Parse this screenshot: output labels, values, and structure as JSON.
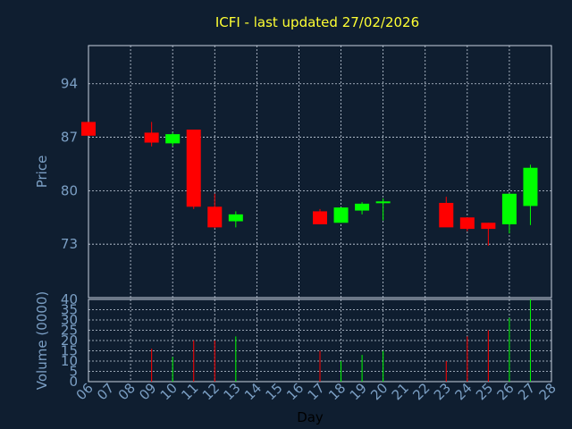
{
  "chart_data": {
    "type": "candlestick",
    "title": "ICFI - last updated 27/02/2026",
    "xlabel": "Day",
    "x_ticks": [
      "06",
      "07",
      "08",
      "09",
      "10",
      "11",
      "12",
      "13",
      "14",
      "15",
      "16",
      "17",
      "18",
      "19",
      "20",
      "21",
      "22",
      "23",
      "24",
      "25",
      "26",
      "27",
      "28"
    ],
    "price": {
      "ylabel": "Price",
      "ylim": [
        66,
        99
      ],
      "ticks": [
        94,
        87,
        80,
        73
      ],
      "grid": true,
      "candles": [
        {
          "day": "06",
          "open": 89.0,
          "high": 89.0,
          "low": 87.2,
          "close": 87.2
        },
        {
          "day": "09",
          "open": 87.6,
          "high": 89.0,
          "low": 85.8,
          "close": 86.3
        },
        {
          "day": "10",
          "open": 86.2,
          "high": 87.6,
          "low": 85.8,
          "close": 87.4
        },
        {
          "day": "11",
          "open": 88.0,
          "high": 88.0,
          "low": 77.6,
          "close": 77.9
        },
        {
          "day": "12",
          "open": 77.9,
          "high": 79.6,
          "low": 75.1,
          "close": 75.2
        },
        {
          "day": "13",
          "open": 76.0,
          "high": 77.3,
          "low": 75.2,
          "close": 76.9
        },
        {
          "day": "17",
          "open": 77.3,
          "high": 77.6,
          "low": 75.6,
          "close": 75.6
        },
        {
          "day": "18",
          "open": 75.8,
          "high": 77.8,
          "low": 75.8,
          "close": 77.8
        },
        {
          "day": "19",
          "open": 77.4,
          "high": 78.5,
          "low": 76.9,
          "close": 78.3
        },
        {
          "day": "20",
          "open": 78.4,
          "high": 79.0,
          "low": 76.1,
          "close": 78.6
        },
        {
          "day": "23",
          "open": 78.4,
          "high": 79.2,
          "low": 75.3,
          "close": 75.2
        },
        {
          "day": "24",
          "open": 76.5,
          "high": 76.5,
          "low": 74.7,
          "close": 75.0
        },
        {
          "day": "25",
          "open": 75.8,
          "high": 75.8,
          "low": 72.8,
          "close": 75.0
        },
        {
          "day": "26",
          "open": 75.6,
          "high": 79.6,
          "low": 74.4,
          "close": 79.6
        },
        {
          "day": "27",
          "open": 78.0,
          "high": 83.4,
          "low": 75.5,
          "close": 83.0
        }
      ]
    },
    "volume": {
      "ylabel": "Volume (0000)",
      "ylim": [
        0,
        40
      ],
      "ticks": [
        0,
        5,
        10,
        15,
        20,
        25,
        30,
        35,
        40
      ],
      "bars": [
        {
          "day": "09",
          "value": 16,
          "direction": "down"
        },
        {
          "day": "10",
          "value": 12,
          "direction": "up"
        },
        {
          "day": "11",
          "value": 20,
          "direction": "down"
        },
        {
          "day": "12",
          "value": 20,
          "direction": "down"
        },
        {
          "day": "13",
          "value": 22,
          "direction": "up"
        },
        {
          "day": "17",
          "value": 15,
          "direction": "down"
        },
        {
          "day": "18",
          "value": 10,
          "direction": "up"
        },
        {
          "day": "19",
          "value": 13,
          "direction": "up"
        },
        {
          "day": "20",
          "value": 15,
          "direction": "up"
        },
        {
          "day": "23",
          "value": 10,
          "direction": "down"
        },
        {
          "day": "24",
          "value": 22,
          "direction": "down"
        },
        {
          "day": "25",
          "value": 25,
          "direction": "down"
        },
        {
          "day": "26",
          "value": 31,
          "direction": "up"
        },
        {
          "day": "27",
          "value": 40,
          "direction": "up"
        }
      ]
    },
    "colors": {
      "background": "#0f1e30",
      "up": "#00ff00",
      "down": "#ff0000",
      "grid": "#c8d2e0",
      "text": "#7b9fc4",
      "title": "#ffff33"
    }
  }
}
